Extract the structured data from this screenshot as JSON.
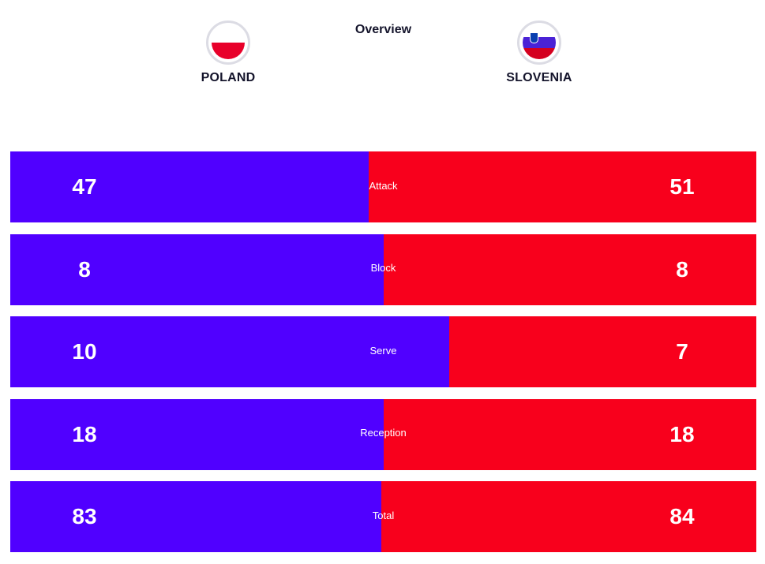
{
  "header": {
    "title": "Overview"
  },
  "teams": {
    "home": {
      "name": "POLAND",
      "flag_icon": "poland-flag-icon",
      "flag_colors": [
        "#ffffff",
        "#e8002a"
      ]
    },
    "away": {
      "name": "SLOVENIA",
      "flag_icon": "slovenia-flag-icon",
      "flag_colors": [
        "#ffffff",
        "#4a22d6",
        "#d4001f"
      ]
    }
  },
  "colors": {
    "home": "#5000ff",
    "away": "#f8001c"
  },
  "stats": [
    {
      "label": "Attack",
      "home": "47",
      "away": "51",
      "home_share": 0.48
    },
    {
      "label": "Block",
      "home": "8",
      "away": "8",
      "home_share": 0.5
    },
    {
      "label": "Serve",
      "home": "10",
      "away": "7",
      "home_share": 0.588
    },
    {
      "label": "Reception",
      "home": "18",
      "away": "18",
      "home_share": 0.5
    },
    {
      "label": "Total",
      "home": "83",
      "away": "84",
      "home_share": 0.497
    }
  ]
}
